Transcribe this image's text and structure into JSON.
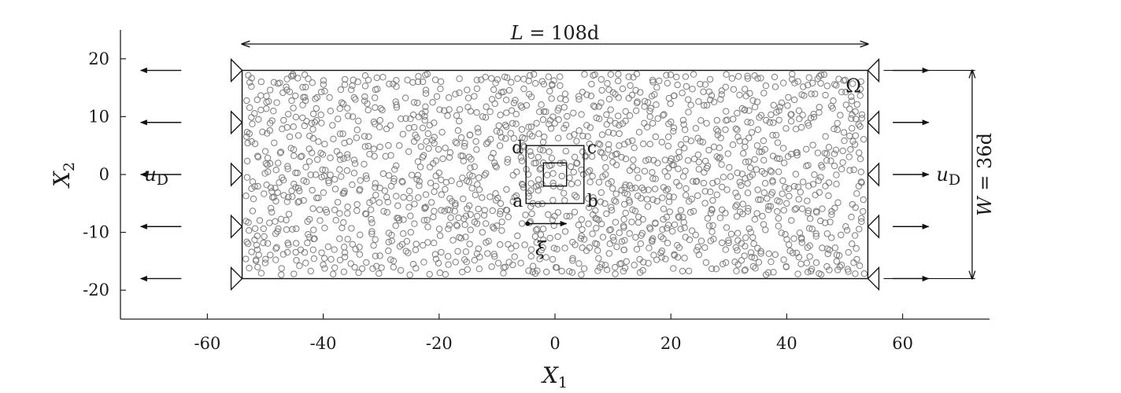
{
  "diagram": {
    "axes": {
      "x_title": "X",
      "x_title_sub": "1",
      "y_title": "X",
      "y_title_sub": "2",
      "x_ticks": [
        -60,
        -40,
        -20,
        0,
        20,
        40,
        60
      ],
      "y_ticks": [
        20,
        10,
        0,
        -10,
        -20
      ],
      "xlim": [
        -75,
        75
      ],
      "ylim": [
        -25,
        25
      ]
    },
    "domain": {
      "x_range": [
        -54,
        54
      ],
      "y_range": [
        -18,
        18
      ],
      "label": "Ω",
      "particle_radius": 0.5,
      "particle_count": 1700
    },
    "dimensions": {
      "length_label": "L = 108d",
      "width_label": "W = 36d"
    },
    "boundary": {
      "left_label": "u",
      "left_label_sub": "D",
      "right_label": "u",
      "right_label_sub": "D",
      "support_rows_y": [
        18,
        9,
        0,
        -9,
        -18
      ]
    },
    "windows": {
      "outer": {
        "x_range": [
          -5,
          5
        ],
        "y_range": [
          -5,
          5
        ]
      },
      "inner": {
        "x_range": [
          -2,
          2
        ],
        "y_range": [
          -2,
          2
        ]
      },
      "corner_a": "a",
      "corner_b": "b",
      "corner_c": "c",
      "corner_d": "d"
    },
    "shift": {
      "label": "ξ",
      "from": [
        -5,
        -8.5
      ],
      "to": [
        2,
        -8.5
      ]
    }
  }
}
